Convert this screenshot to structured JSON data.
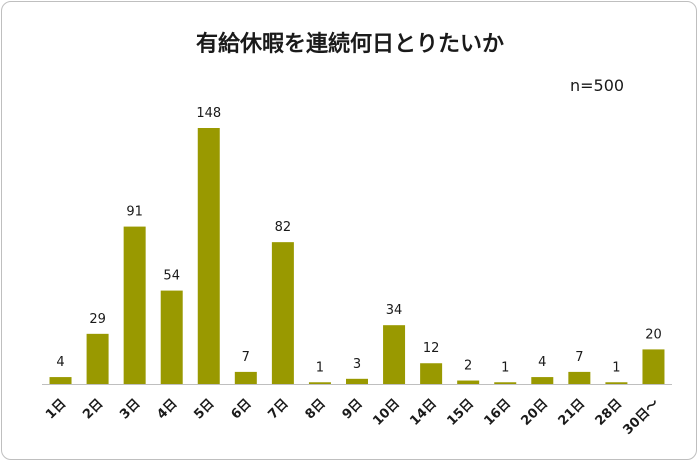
{
  "chart_data": {
    "type": "bar",
    "title": "有給休暇を連続何日とりたいか",
    "note": "n=500",
    "categories": [
      "1日",
      "2日",
      "3日",
      "4日",
      "5日",
      "6日",
      "7日",
      "8日",
      "9日",
      "10日",
      "14日",
      "15日",
      "16日",
      "20日",
      "21日",
      "28日",
      "30日〜"
    ],
    "values": [
      4,
      29,
      91,
      54,
      148,
      7,
      82,
      1,
      3,
      34,
      12,
      2,
      1,
      4,
      7,
      1,
      20
    ],
    "bar_color": "#999900",
    "ylim": [
      0,
      148
    ],
    "grid": false,
    "legend": "none",
    "xlabel": "",
    "ylabel": ""
  }
}
